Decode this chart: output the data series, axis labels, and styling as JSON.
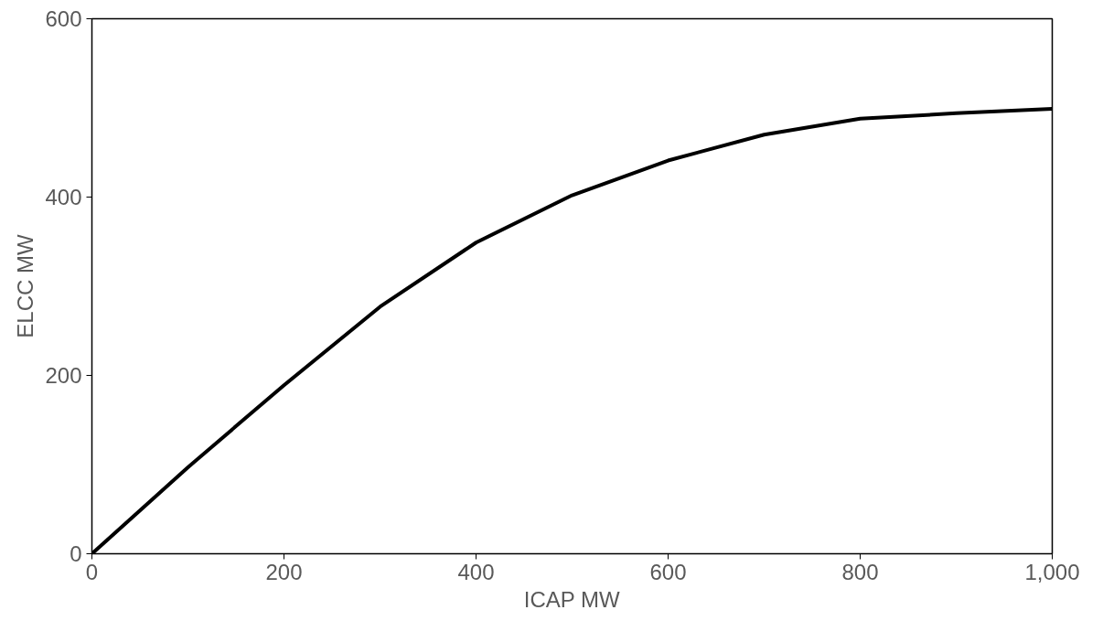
{
  "chart_data": {
    "type": "line",
    "xlabel": "ICAP MW",
    "ylabel": "ELCC MW",
    "x": [
      0,
      100,
      200,
      300,
      400,
      500,
      600,
      700,
      800,
      900,
      1000
    ],
    "series": [
      {
        "color": "#000000",
        "values": [
          0,
          97,
          189,
          277,
          349,
          402,
          441,
          470,
          488,
          494,
          499
        ]
      }
    ],
    "xlim": [
      0,
      1000
    ],
    "ylim": [
      0,
      600
    ],
    "xticks": [
      0,
      200,
      400,
      600,
      800,
      {
        "value": 1000,
        "label": "1,000"
      }
    ],
    "yticks": [
      0,
      200,
      400,
      600
    ],
    "grid": false,
    "marker": "none",
    "line_style": "solid"
  }
}
